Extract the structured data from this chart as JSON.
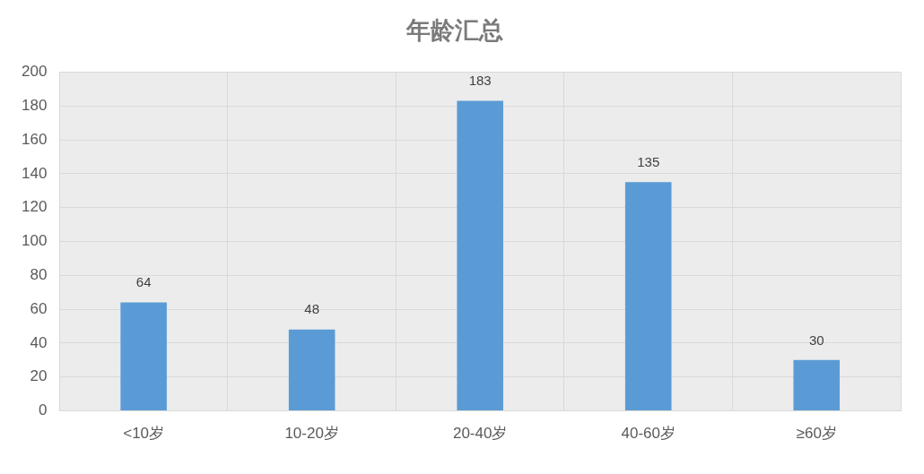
{
  "chart_data": {
    "type": "bar",
    "title": "年龄汇总",
    "categories": [
      "<10岁",
      "10-20岁",
      "20-40岁",
      "40-60岁",
      "≥60岁"
    ],
    "values": [
      64,
      48,
      183,
      135,
      30
    ],
    "color": "#5b9bd5",
    "ylim": [
      0,
      200
    ],
    "yticks": [
      0,
      20,
      40,
      60,
      80,
      100,
      120,
      140,
      160,
      180,
      200
    ],
    "grid": true,
    "data_labels": true
  }
}
